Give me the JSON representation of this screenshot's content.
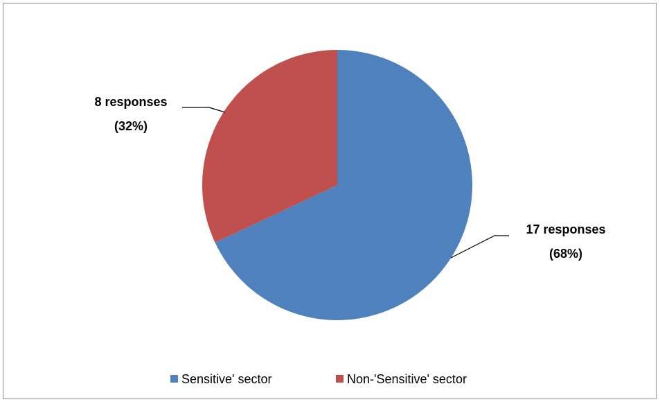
{
  "chart_data": {
    "type": "pie",
    "title": "",
    "categories": [
      "Sensitive' sector",
      "Non-'Sensitive' sector"
    ],
    "values": [
      17,
      8
    ],
    "percentages": [
      68,
      32
    ],
    "data_labels": [
      {
        "line1": "17 responses",
        "line2": "(68%)"
      },
      {
        "line1": "8 responses",
        "line2": "(32%)"
      }
    ],
    "colors": [
      "#4f81bd",
      "#c0504d"
    ],
    "legend_position": "bottom"
  }
}
